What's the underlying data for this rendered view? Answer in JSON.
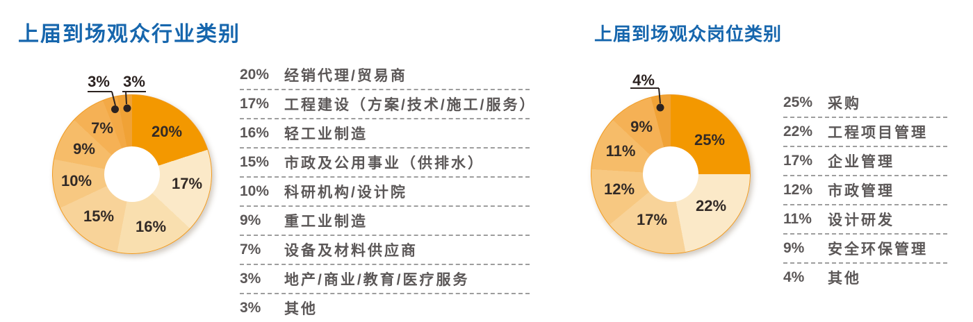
{
  "styles": {
    "background": "#FFFFFF",
    "title_color": "#1666AD",
    "legend_text_color": "#5B5757",
    "slice_label_color": "#322A26",
    "callout_color": "#2B2220",
    "divider_color": "#9D9D9D",
    "donut_rim_color": "#F09A20"
  },
  "chart_data": [
    {
      "type": "pie",
      "subtype": "donut",
      "title": "上届到场观众行业类别",
      "unit": "%",
      "direction": "clockwise",
      "start_angle_deg": 0,
      "legend_position": "right",
      "categories": [
        "经销代理/贸易商",
        "工程建设（方案/技术/施工/服务）",
        "轻工业制造",
        "市政及公用事业（供排水）",
        "科研机构/设计院",
        "重工业制造",
        "设备及材料供应商",
        "地产/商业/教育/医疗服务",
        "其他"
      ],
      "values": [
        20,
        17,
        16,
        15,
        10,
        9,
        7,
        3,
        3
      ],
      "slice_colors": [
        "#F39800",
        "#FBE9C8",
        "#F9DFAF",
        "#F8D399",
        "#F7C881",
        "#F6BC69",
        "#F5B155",
        "#F3A946",
        "#F0A236"
      ],
      "callout_indices": [
        7,
        8
      ]
    },
    {
      "type": "pie",
      "subtype": "donut",
      "title": "上届到场观众岗位类别",
      "unit": "%",
      "direction": "clockwise",
      "start_angle_deg": 0,
      "legend_position": "right",
      "categories": [
        "采购",
        "工程项目管理",
        "企业管理",
        "市政管理",
        "设计研发",
        "安全环保管理",
        "其他"
      ],
      "values": [
        25,
        22,
        17,
        12,
        11,
        9,
        4
      ],
      "slice_colors": [
        "#F39800",
        "#FBE9C8",
        "#F8D399",
        "#F7C881",
        "#F6BC69",
        "#F5B155",
        "#F0A236"
      ],
      "callout_indices": [
        6
      ]
    }
  ]
}
